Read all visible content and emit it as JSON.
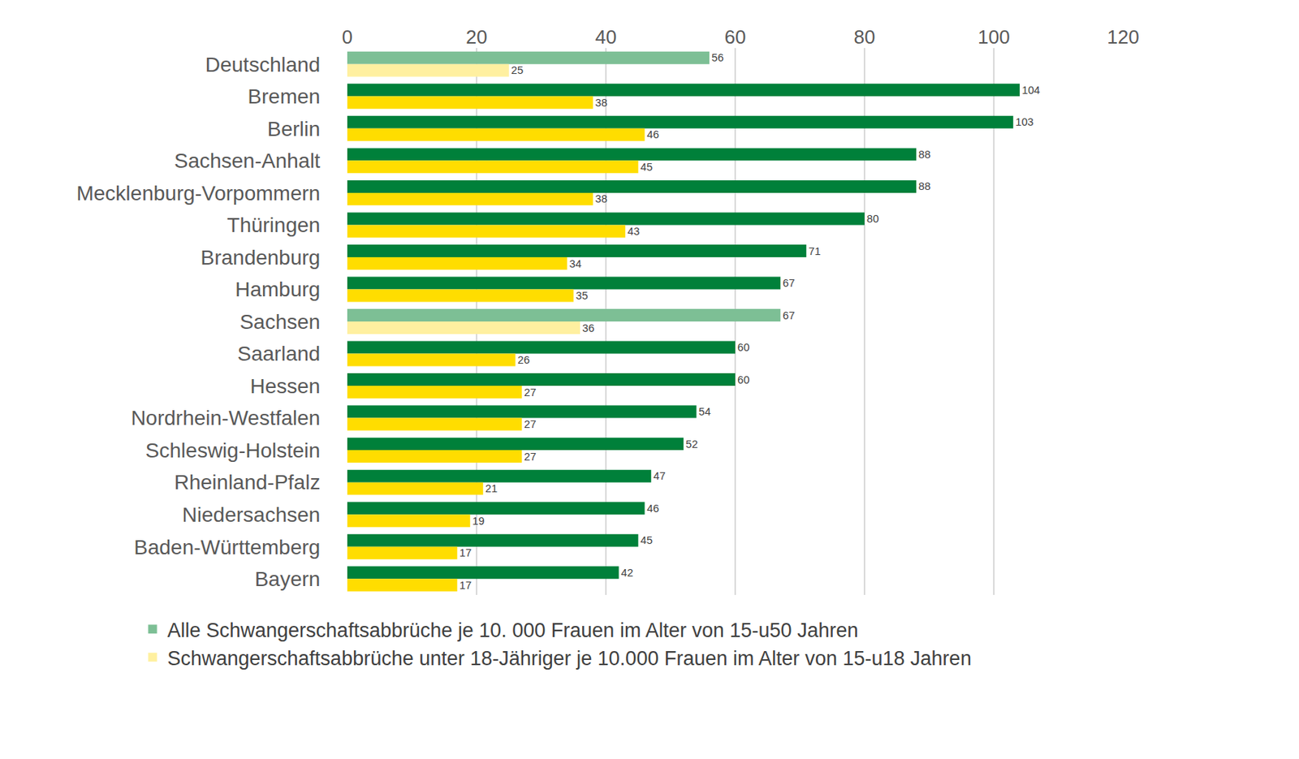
{
  "chart_data": {
    "type": "bar",
    "orientation": "horizontal",
    "categories": [
      "Deutschland",
      "Bremen",
      "Berlin",
      "Sachsen-Anhalt",
      "Mecklenburg-Vorpommern",
      "Thüringen",
      "Brandenburg",
      "Hamburg",
      "Sachsen",
      "Saarland",
      "Hessen",
      "Nordrhein-Westfalen",
      "Schleswig-Holstein",
      "Rheinland-Pfalz",
      "Niedersachsen",
      "Baden-Württemberg",
      "Bayern"
    ],
    "series": [
      {
        "name": "Alle Schwangerschaftsabbrüche je 10. 000 Frauen im Alter von 15-u50 Jahren",
        "color": "#00803a",
        "colors": [
          "#7dbf95",
          "#00803a",
          "#00803a",
          "#00803a",
          "#00803a",
          "#00803a",
          "#00803a",
          "#00803a",
          "#7dbf95",
          "#00803a",
          "#00803a",
          "#00803a",
          "#00803a",
          "#00803a",
          "#00803a",
          "#00803a",
          "#00803a"
        ],
        "values": [
          56,
          104,
          103,
          88,
          88,
          80,
          71,
          67,
          67,
          60,
          60,
          54,
          52,
          47,
          46,
          45,
          42
        ]
      },
      {
        "name": "Schwangerschaftsabbrüche unter 18-Jähriger je 10.000 Frauen im Alter von 15-u18 Jahren",
        "color": "#ffdd00",
        "colors": [
          "#fff0a0",
          "#ffdd00",
          "#ffdd00",
          "#ffdd00",
          "#ffdd00",
          "#ffdd00",
          "#ffdd00",
          "#ffdd00",
          "#fff0a0",
          "#ffdd00",
          "#ffdd00",
          "#ffdd00",
          "#ffdd00",
          "#ffdd00",
          "#ffdd00",
          "#ffdd00",
          "#ffdd00"
        ],
        "values": [
          25,
          38,
          46,
          45,
          38,
          43,
          34,
          35,
          36,
          26,
          27,
          27,
          27,
          21,
          19,
          17,
          17
        ]
      }
    ],
    "xlim": [
      0,
      120
    ],
    "xticks": [
      0,
      20,
      40,
      60,
      80,
      100,
      120
    ],
    "grid": true,
    "legend": "bottom",
    "data_labels": true
  }
}
